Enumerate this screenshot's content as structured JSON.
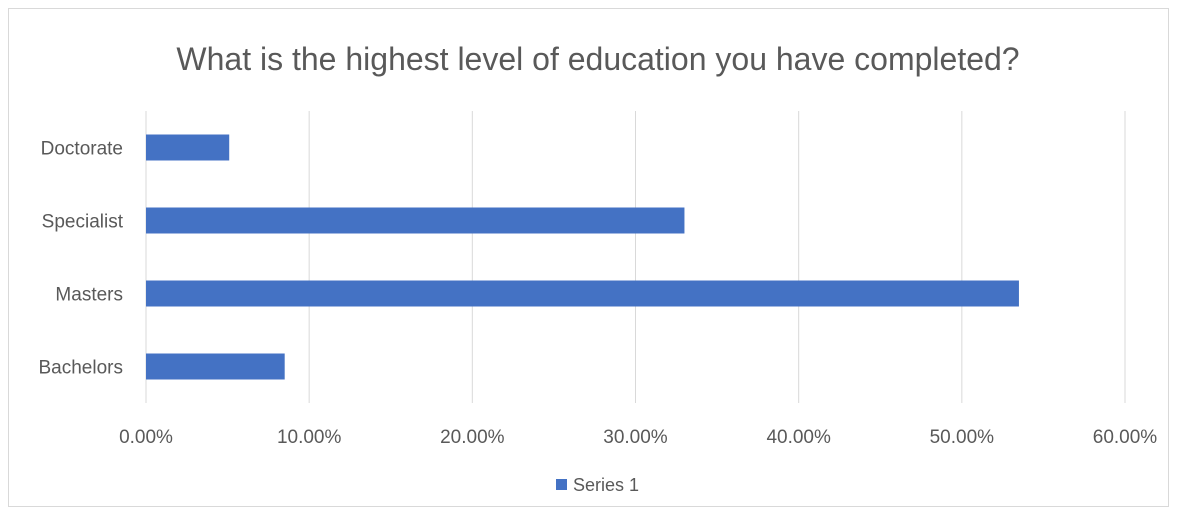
{
  "chart_data": {
    "type": "bar",
    "orientation": "horizontal",
    "title": "What is the highest level of education you have completed?",
    "categories": [
      "Bachelors",
      "Masters",
      "Specialist",
      "Doctorate"
    ],
    "series": [
      {
        "name": "Series 1",
        "values": [
          8.5,
          53.5,
          33.0,
          5.1
        ],
        "color": "#4472C4"
      }
    ],
    "x_ticks": [
      "0.00%",
      "10.00%",
      "20.00%",
      "30.00%",
      "40.00%",
      "50.00%",
      "60.00%"
    ],
    "xlim": [
      0,
      60
    ],
    "grid": "vertical",
    "legend_position": "bottom"
  }
}
